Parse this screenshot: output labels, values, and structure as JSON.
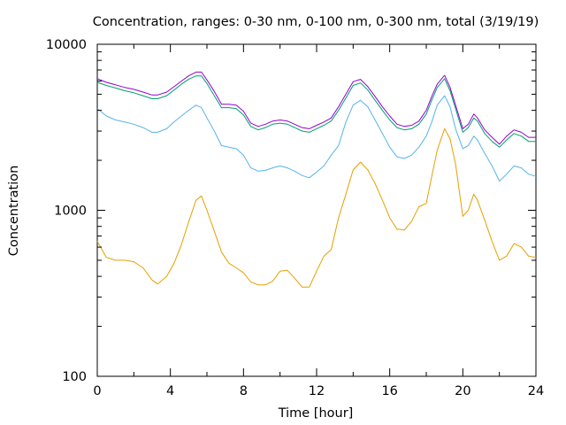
{
  "chart_data": {
    "type": "line",
    "title": "Concentration, ranges: 0-30 nm, 0-100 nm, 0-300 nm, total (3/19/19)",
    "xlabel": "Time [hour]",
    "ylabel": "Concentration",
    "xlim": [
      0,
      24
    ],
    "ylim": [
      100,
      10000
    ],
    "yscale": "log",
    "xticks": [
      "0",
      "4",
      "8",
      "12",
      "16",
      "20",
      "24"
    ],
    "yticks": [
      "100",
      "1000",
      "10000"
    ],
    "grid": false,
    "legend": "none",
    "series": [
      {
        "color": "#e69f00",
        "x": [
          0,
          0.5,
          1,
          1.5,
          2,
          2.5,
          3,
          3.3,
          3.8,
          4.2,
          4.6,
          5,
          5.4,
          5.7,
          6,
          6.4,
          6.8,
          7.2,
          7.6,
          8,
          8.4,
          8.8,
          9.2,
          9.6,
          10,
          10.4,
          10.8,
          11.2,
          11.6,
          12,
          12.4,
          12.8,
          13.2,
          13.6,
          14,
          14.4,
          14.8,
          15.2,
          15.6,
          16,
          16.4,
          16.8,
          17.2,
          17.6,
          18,
          18.3,
          18.6,
          19,
          19.3,
          19.6,
          20,
          20.3,
          20.6,
          20.8,
          21.2,
          21.6,
          22,
          22.4,
          22.8,
          23.2,
          23.6,
          24
        ],
        "values": [
          650,
          520,
          500,
          500,
          490,
          450,
          380,
          360,
          400,
          480,
          620,
          850,
          1150,
          1220,
          1000,
          750,
          560,
          480,
          450,
          420,
          370,
          355,
          355,
          375,
          430,
          435,
          390,
          345,
          345,
          430,
          530,
          580,
          900,
          1250,
          1750,
          1950,
          1750,
          1450,
          1150,
          900,
          770,
          760,
          860,
          1050,
          1100,
          1600,
          2300,
          3100,
          2700,
          1900,
          920,
          1000,
          1250,
          1150,
          870,
          650,
          500,
          530,
          630,
          600,
          530,
          520
        ]
      },
      {
        "color": "#56b4e9",
        "x": [
          0,
          0.5,
          1,
          1.5,
          2,
          2.5,
          3,
          3.3,
          3.8,
          4.2,
          4.6,
          5,
          5.4,
          5.7,
          6,
          6.4,
          6.8,
          7.2,
          7.6,
          8,
          8.4,
          8.8,
          9.2,
          9.6,
          10,
          10.4,
          10.8,
          11.2,
          11.6,
          12,
          12.4,
          12.8,
          13.2,
          13.6,
          14,
          14.4,
          14.8,
          15.2,
          15.6,
          16,
          16.4,
          16.8,
          17.2,
          17.6,
          18,
          18.3,
          18.6,
          19,
          19.3,
          19.6,
          20,
          20.3,
          20.6,
          20.8,
          21.2,
          21.6,
          22,
          22.4,
          22.8,
          23.2,
          23.6,
          24
        ],
        "values": [
          4100,
          3700,
          3500,
          3400,
          3300,
          3150,
          2950,
          2950,
          3100,
          3400,
          3700,
          4000,
          4300,
          4150,
          3600,
          3000,
          2450,
          2400,
          2350,
          2150,
          1800,
          1720,
          1740,
          1800,
          1850,
          1800,
          1720,
          1620,
          1570,
          1700,
          1850,
          2150,
          2450,
          3400,
          4300,
          4600,
          4200,
          3500,
          2900,
          2400,
          2100,
          2050,
          2150,
          2400,
          2800,
          3400,
          4300,
          4900,
          4200,
          3100,
          2350,
          2450,
          2800,
          2650,
          2200,
          1850,
          1500,
          1650,
          1850,
          1800,
          1650,
          1600
        ]
      },
      {
        "color": "#009e73",
        "x": [
          0,
          0.5,
          1,
          1.5,
          2,
          2.5,
          3,
          3.3,
          3.8,
          4.2,
          4.6,
          5,
          5.4,
          5.7,
          6,
          6.4,
          6.8,
          7.2,
          7.6,
          8,
          8.4,
          8.8,
          9.2,
          9.6,
          10,
          10.4,
          10.8,
          11.2,
          11.6,
          12,
          12.4,
          12.8,
          13.2,
          13.6,
          14,
          14.4,
          14.8,
          15.2,
          15.6,
          16,
          16.4,
          16.8,
          17.2,
          17.6,
          18,
          18.3,
          18.6,
          19,
          19.3,
          19.6,
          20,
          20.3,
          20.6,
          20.8,
          21.2,
          21.6,
          22,
          22.4,
          22.8,
          23.2,
          23.6,
          24
        ],
        "values": [
          5900,
          5650,
          5450,
          5250,
          5100,
          4900,
          4700,
          4700,
          4900,
          5300,
          5750,
          6150,
          6450,
          6450,
          5800,
          4900,
          4150,
          4150,
          4100,
          3750,
          3200,
          3050,
          3150,
          3300,
          3350,
          3300,
          3150,
          3000,
          2950,
          3100,
          3250,
          3450,
          4000,
          4750,
          5650,
          5850,
          5300,
          4600,
          4000,
          3500,
          3150,
          3050,
          3100,
          3300,
          3800,
          4600,
          5500,
          6200,
          5250,
          4100,
          2950,
          3150,
          3600,
          3450,
          2900,
          2600,
          2400,
          2650,
          2900,
          2800,
          2600,
          2600
        ]
      },
      {
        "color": "#9400d3",
        "x": [
          0,
          0.5,
          1,
          1.5,
          2,
          2.5,
          3,
          3.3,
          3.8,
          4.2,
          4.6,
          5,
          5.4,
          5.7,
          6,
          6.4,
          6.8,
          7.2,
          7.6,
          8,
          8.4,
          8.8,
          9.2,
          9.6,
          10,
          10.4,
          10.8,
          11.2,
          11.6,
          12,
          12.4,
          12.8,
          13.2,
          13.6,
          14,
          14.4,
          14.8,
          15.2,
          15.6,
          16,
          16.4,
          16.8,
          17.2,
          17.6,
          18,
          18.3,
          18.6,
          19,
          19.3,
          19.6,
          20,
          20.3,
          20.6,
          20.8,
          21.2,
          21.6,
          22,
          22.4,
          22.8,
          23.2,
          23.6,
          24
        ],
        "values": [
          6200,
          5900,
          5700,
          5500,
          5350,
          5150,
          4950,
          4950,
          5150,
          5550,
          6000,
          6450,
          6800,
          6800,
          6100,
          5200,
          4350,
          4350,
          4300,
          3950,
          3350,
          3200,
          3300,
          3450,
          3500,
          3450,
          3300,
          3150,
          3100,
          3250,
          3400,
          3600,
          4200,
          5000,
          5950,
          6150,
          5550,
          4850,
          4200,
          3700,
          3300,
          3200,
          3250,
          3450,
          4000,
          4850,
          5750,
          6500,
          5500,
          4300,
          3100,
          3300,
          3800,
          3600,
          3050,
          2750,
          2500,
          2800,
          3050,
          2950,
          2750,
          2750
        ]
      }
    ]
  }
}
